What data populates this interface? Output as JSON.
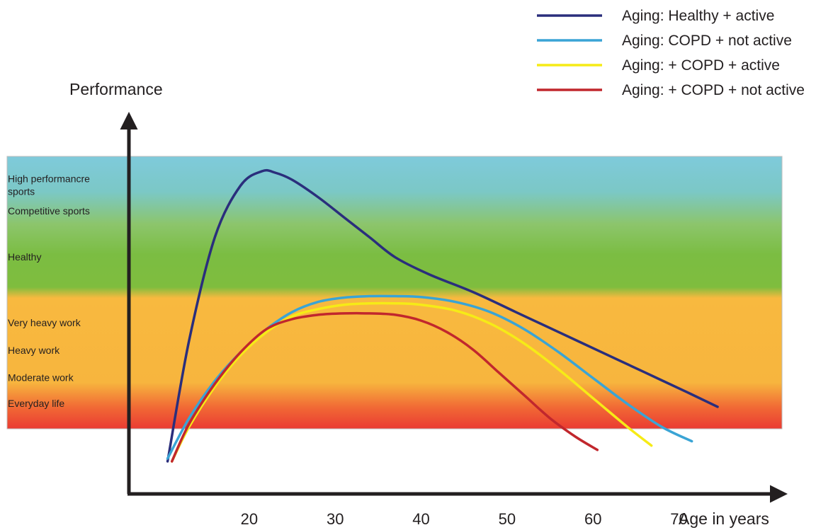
{
  "chart_data": {
    "type": "line",
    "ylabel": "Performance",
    "xlabel": "Age in years",
    "x_ticks": [
      20,
      30,
      40,
      50,
      60,
      70
    ],
    "bands": [
      {
        "label": "High performancre\nsports",
        "value": 9.5
      },
      {
        "label": "Competitive sports",
        "value": 8.6
      },
      {
        "label": "Healthy",
        "value": 7.0
      },
      {
        "label": "Very heavy work",
        "value": 4.7
      },
      {
        "label": "Heavy work",
        "value": 3.75
      },
      {
        "label": "Moderate work",
        "value": 2.8
      },
      {
        "label": "Everyday life",
        "value": 1.9
      }
    ],
    "zone_range": [
      1.5,
      10.3
    ],
    "ylim": [
      0,
      11
    ],
    "xlim": [
      6,
      81
    ],
    "legend_position": "top-right",
    "series": [
      {
        "name": "Aging: Healthy + active",
        "color": "#2a2e7c",
        "x": [
          10.5,
          13,
          16,
          19,
          21.5,
          23,
          25,
          28,
          31,
          34,
          37,
          41,
          46,
          51,
          56,
          61,
          66,
          71,
          74.5
        ],
        "y": [
          0,
          4.2,
          7.8,
          9.6,
          10.1,
          10.05,
          9.8,
          9.2,
          8.5,
          7.8,
          7.1,
          6.5,
          5.9,
          5.2,
          4.5,
          3.8,
          3.1,
          2.4,
          1.9
        ]
      },
      {
        "name": "Aging: COPD + not active",
        "color": "#3aa4d5",
        "x": [
          10.5,
          13,
          16,
          19,
          22,
          25,
          28,
          31,
          34,
          37,
          40,
          44,
          48,
          52,
          56,
          60,
          64,
          68,
          71.5
        ],
        "y": [
          0.1,
          1.5,
          2.8,
          3.8,
          4.6,
          5.2,
          5.55,
          5.7,
          5.75,
          5.75,
          5.72,
          5.55,
          5.2,
          4.6,
          3.8,
          2.9,
          2.0,
          1.2,
          0.7
        ]
      },
      {
        "name": "Aging: + COPD + active",
        "color": "#f6eb16",
        "x": [
          11,
          13,
          16,
          19,
          22,
          25,
          28,
          31,
          34,
          37,
          40,
          44,
          48,
          52,
          56,
          60,
          64,
          66.8
        ],
        "y": [
          0,
          1.2,
          2.6,
          3.7,
          4.5,
          5.05,
          5.3,
          5.45,
          5.5,
          5.5,
          5.45,
          5.25,
          4.8,
          4.1,
          3.2,
          2.2,
          1.2,
          0.55
        ]
      },
      {
        "name": "Aging: + COPD + not active",
        "color": "#c1272d",
        "x": [
          11,
          13,
          16,
          19,
          22,
          25,
          28,
          31,
          34,
          37,
          40,
          43,
          46,
          49,
          52,
          55,
          58,
          60.5
        ],
        "y": [
          0,
          1.3,
          2.7,
          3.8,
          4.6,
          4.95,
          5.1,
          5.15,
          5.15,
          5.1,
          4.9,
          4.5,
          3.9,
          3.1,
          2.3,
          1.5,
          0.85,
          0.4
        ]
      }
    ]
  }
}
